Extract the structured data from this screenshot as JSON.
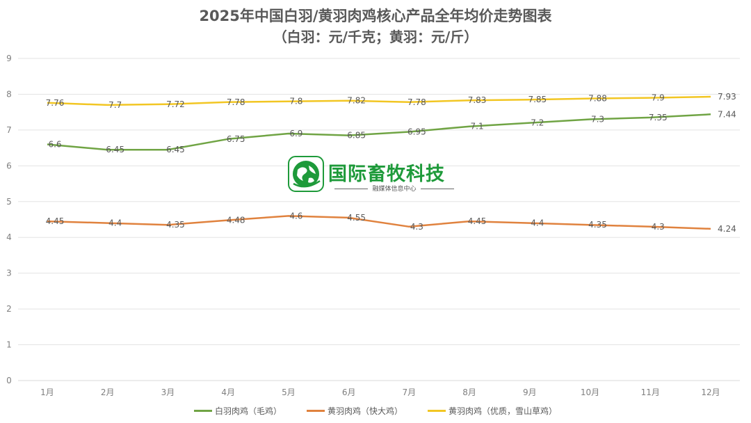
{
  "chart_data": {
    "type": "line",
    "title": "2025年中国白羽/黄羽肉鸡核心产品全年均价走势图表",
    "subtitle": "（白羽：元/千克；黄羽：元/斤）",
    "categories": [
      "1月",
      "2月",
      "3月",
      "4月",
      "5月",
      "6月",
      "7月",
      "8月",
      "9月",
      "10月",
      "11月",
      "12月"
    ],
    "ylim": [
      0,
      9
    ],
    "yticks": [
      "0",
      "1",
      "2",
      "3",
      "4",
      "5",
      "6",
      "7",
      "8",
      "9"
    ],
    "grid": true,
    "legend_position": "bottom",
    "series": [
      {
        "name": "白羽肉鸡（毛鸡）",
        "color": "#70a444",
        "values": [
          6.6,
          6.45,
          6.45,
          6.75,
          6.9,
          6.85,
          6.95,
          7.1,
          7.2,
          7.3,
          7.35,
          7.44
        ]
      },
      {
        "name": "黄羽肉鸡（快大鸡）",
        "color": "#e0823e",
        "values": [
          4.45,
          4.4,
          4.35,
          4.48,
          4.6,
          4.55,
          4.3,
          4.45,
          4.4,
          4.35,
          4.3,
          4.24
        ]
      },
      {
        "name": "黄羽肉鸡（优质，雪山草鸡）",
        "color": "#f2c623",
        "values": [
          7.76,
          7.7,
          7.72,
          7.78,
          7.8,
          7.82,
          7.78,
          7.83,
          7.85,
          7.88,
          7.9,
          7.93
        ]
      }
    ]
  },
  "watermark": {
    "logo_icon": "globe-leaf-icon",
    "brand": "国际畜牧科技",
    "tagline": "融媒体信息中心"
  }
}
